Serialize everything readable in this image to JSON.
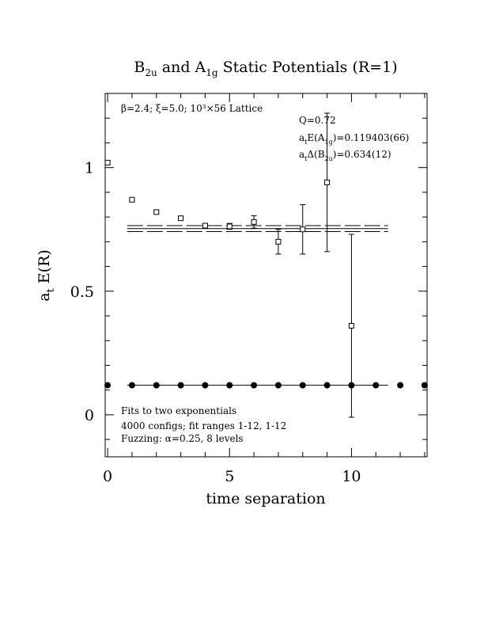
{
  "chart_data": {
    "type": "scatter",
    "title": {
      "main": "B",
      "sub1": "2u",
      "mid": " and A",
      "sub2": "1g",
      "tail": " Static Potentials (R=1)"
    },
    "xlabel": "time separation",
    "ylabel": {
      "a": "a",
      "t": "t",
      "rest": " E(R)"
    },
    "xlim": [
      -0.1,
      13.1
    ],
    "ylim": [
      -0.17,
      1.3
    ],
    "x_ticks": [
      {
        "v": 0,
        "label": "0"
      },
      {
        "v": 5,
        "label": "5"
      },
      {
        "v": 10,
        "label": "10"
      }
    ],
    "y_ticks": [
      {
        "v": 0,
        "label": "0"
      },
      {
        "v": 0.5,
        "label": "0.5"
      },
      {
        "v": 1,
        "label": "1"
      }
    ],
    "annotations": {
      "lattice": "β=2.4; ξ=5.0; 10³×56 Lattice",
      "q": "Q=0.72",
      "e_a1g": {
        "pre": "a",
        "s1": "t",
        "mid": "E(A",
        "s2": "1g",
        "post": ")=0.119403(66)"
      },
      "delta_b2u": {
        "pre": "a",
        "s1": "t",
        "mid": "Δ(B",
        "s2": "2u",
        "post": ")=0.634(12)"
      },
      "fits": "Fits to two exponentials",
      "configs": "4000 configs; fit ranges 1-12, 1-12",
      "fuzzing": "Fuzzing: α=0.25, 8 levels"
    },
    "series": [
      {
        "marker": "open-square",
        "points": [
          {
            "x": 0,
            "y": 1.02,
            "err": 0.004
          },
          {
            "x": 1,
            "y": 0.87,
            "err": 0.004
          },
          {
            "x": 2,
            "y": 0.82,
            "err": 0.004
          },
          {
            "x": 3,
            "y": 0.795,
            "err": 0.005
          },
          {
            "x": 4,
            "y": 0.765,
            "err": 0.007
          },
          {
            "x": 5,
            "y": 0.762,
            "err": 0.012
          },
          {
            "x": 6,
            "y": 0.78,
            "err": 0.025
          },
          {
            "x": 7,
            "y": 0.7,
            "err": 0.05
          },
          {
            "x": 8,
            "y": 0.75,
            "err": 0.1
          },
          {
            "x": 9,
            "y": 0.94,
            "err": 0.28
          },
          {
            "x": 10,
            "y": 0.36,
            "err": 0.37
          }
        ],
        "fit": {
          "value": 0.753,
          "err": 0.012,
          "x_range": [
            0.8,
            11.5
          ]
        }
      },
      {
        "marker": "filled-circle",
        "points": [
          {
            "x": 0,
            "y": 0.1195
          },
          {
            "x": 1,
            "y": 0.1194
          },
          {
            "x": 2,
            "y": 0.1194
          },
          {
            "x": 3,
            "y": 0.1194
          },
          {
            "x": 4,
            "y": 0.1194
          },
          {
            "x": 5,
            "y": 0.1194
          },
          {
            "x": 6,
            "y": 0.1194
          },
          {
            "x": 7,
            "y": 0.1194
          },
          {
            "x": 8,
            "y": 0.1194
          },
          {
            "x": 9,
            "y": 0.1194
          },
          {
            "x": 10,
            "y": 0.1194
          },
          {
            "x": 11,
            "y": 0.1194
          },
          {
            "x": 12,
            "y": 0.1194
          },
          {
            "x": 13,
            "y": 0.1194
          }
        ],
        "fit": {
          "value": 0.119403,
          "x_range": [
            0.8,
            11.5
          ]
        }
      }
    ]
  }
}
